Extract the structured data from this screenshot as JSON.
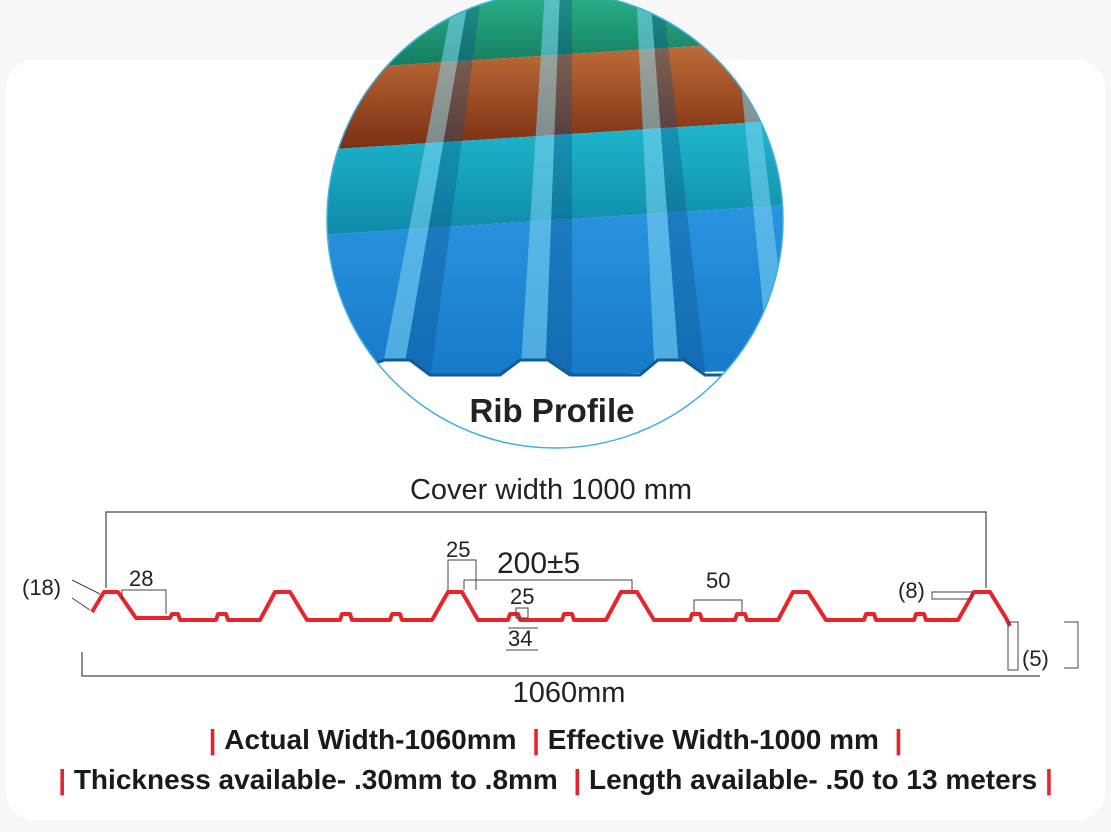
{
  "image": {
    "caption": "Rib Profile",
    "colors": {
      "green": "#1f9e7a",
      "brown": "#a85526",
      "teal": "#1aa8c4",
      "blue": "#1e8ad6",
      "ring": "#3fb0e0"
    }
  },
  "diagram": {
    "cover_width_label": "Cover width 1000 mm",
    "total_width_label": "1060mm",
    "dimensions": {
      "edge_height": "(18)",
      "rib_width": "28",
      "rib_top": "25",
      "pitch": "200±5",
      "valley_top": "25",
      "valley_bottom": "34",
      "small_rib": "50",
      "overlap": "(8)",
      "end_drop": "(5)"
    },
    "profile_color": "#e8242b",
    "line_color": "#444444"
  },
  "specs": {
    "line1": [
      "Actual Width-1060mm",
      "Effective Width-1000 mm"
    ],
    "line2": [
      "Thickness available- .30mm to .8mm",
      "Length available- .50 to 13 meters"
    ],
    "separator": "|",
    "separator_color": "#e8242b"
  }
}
